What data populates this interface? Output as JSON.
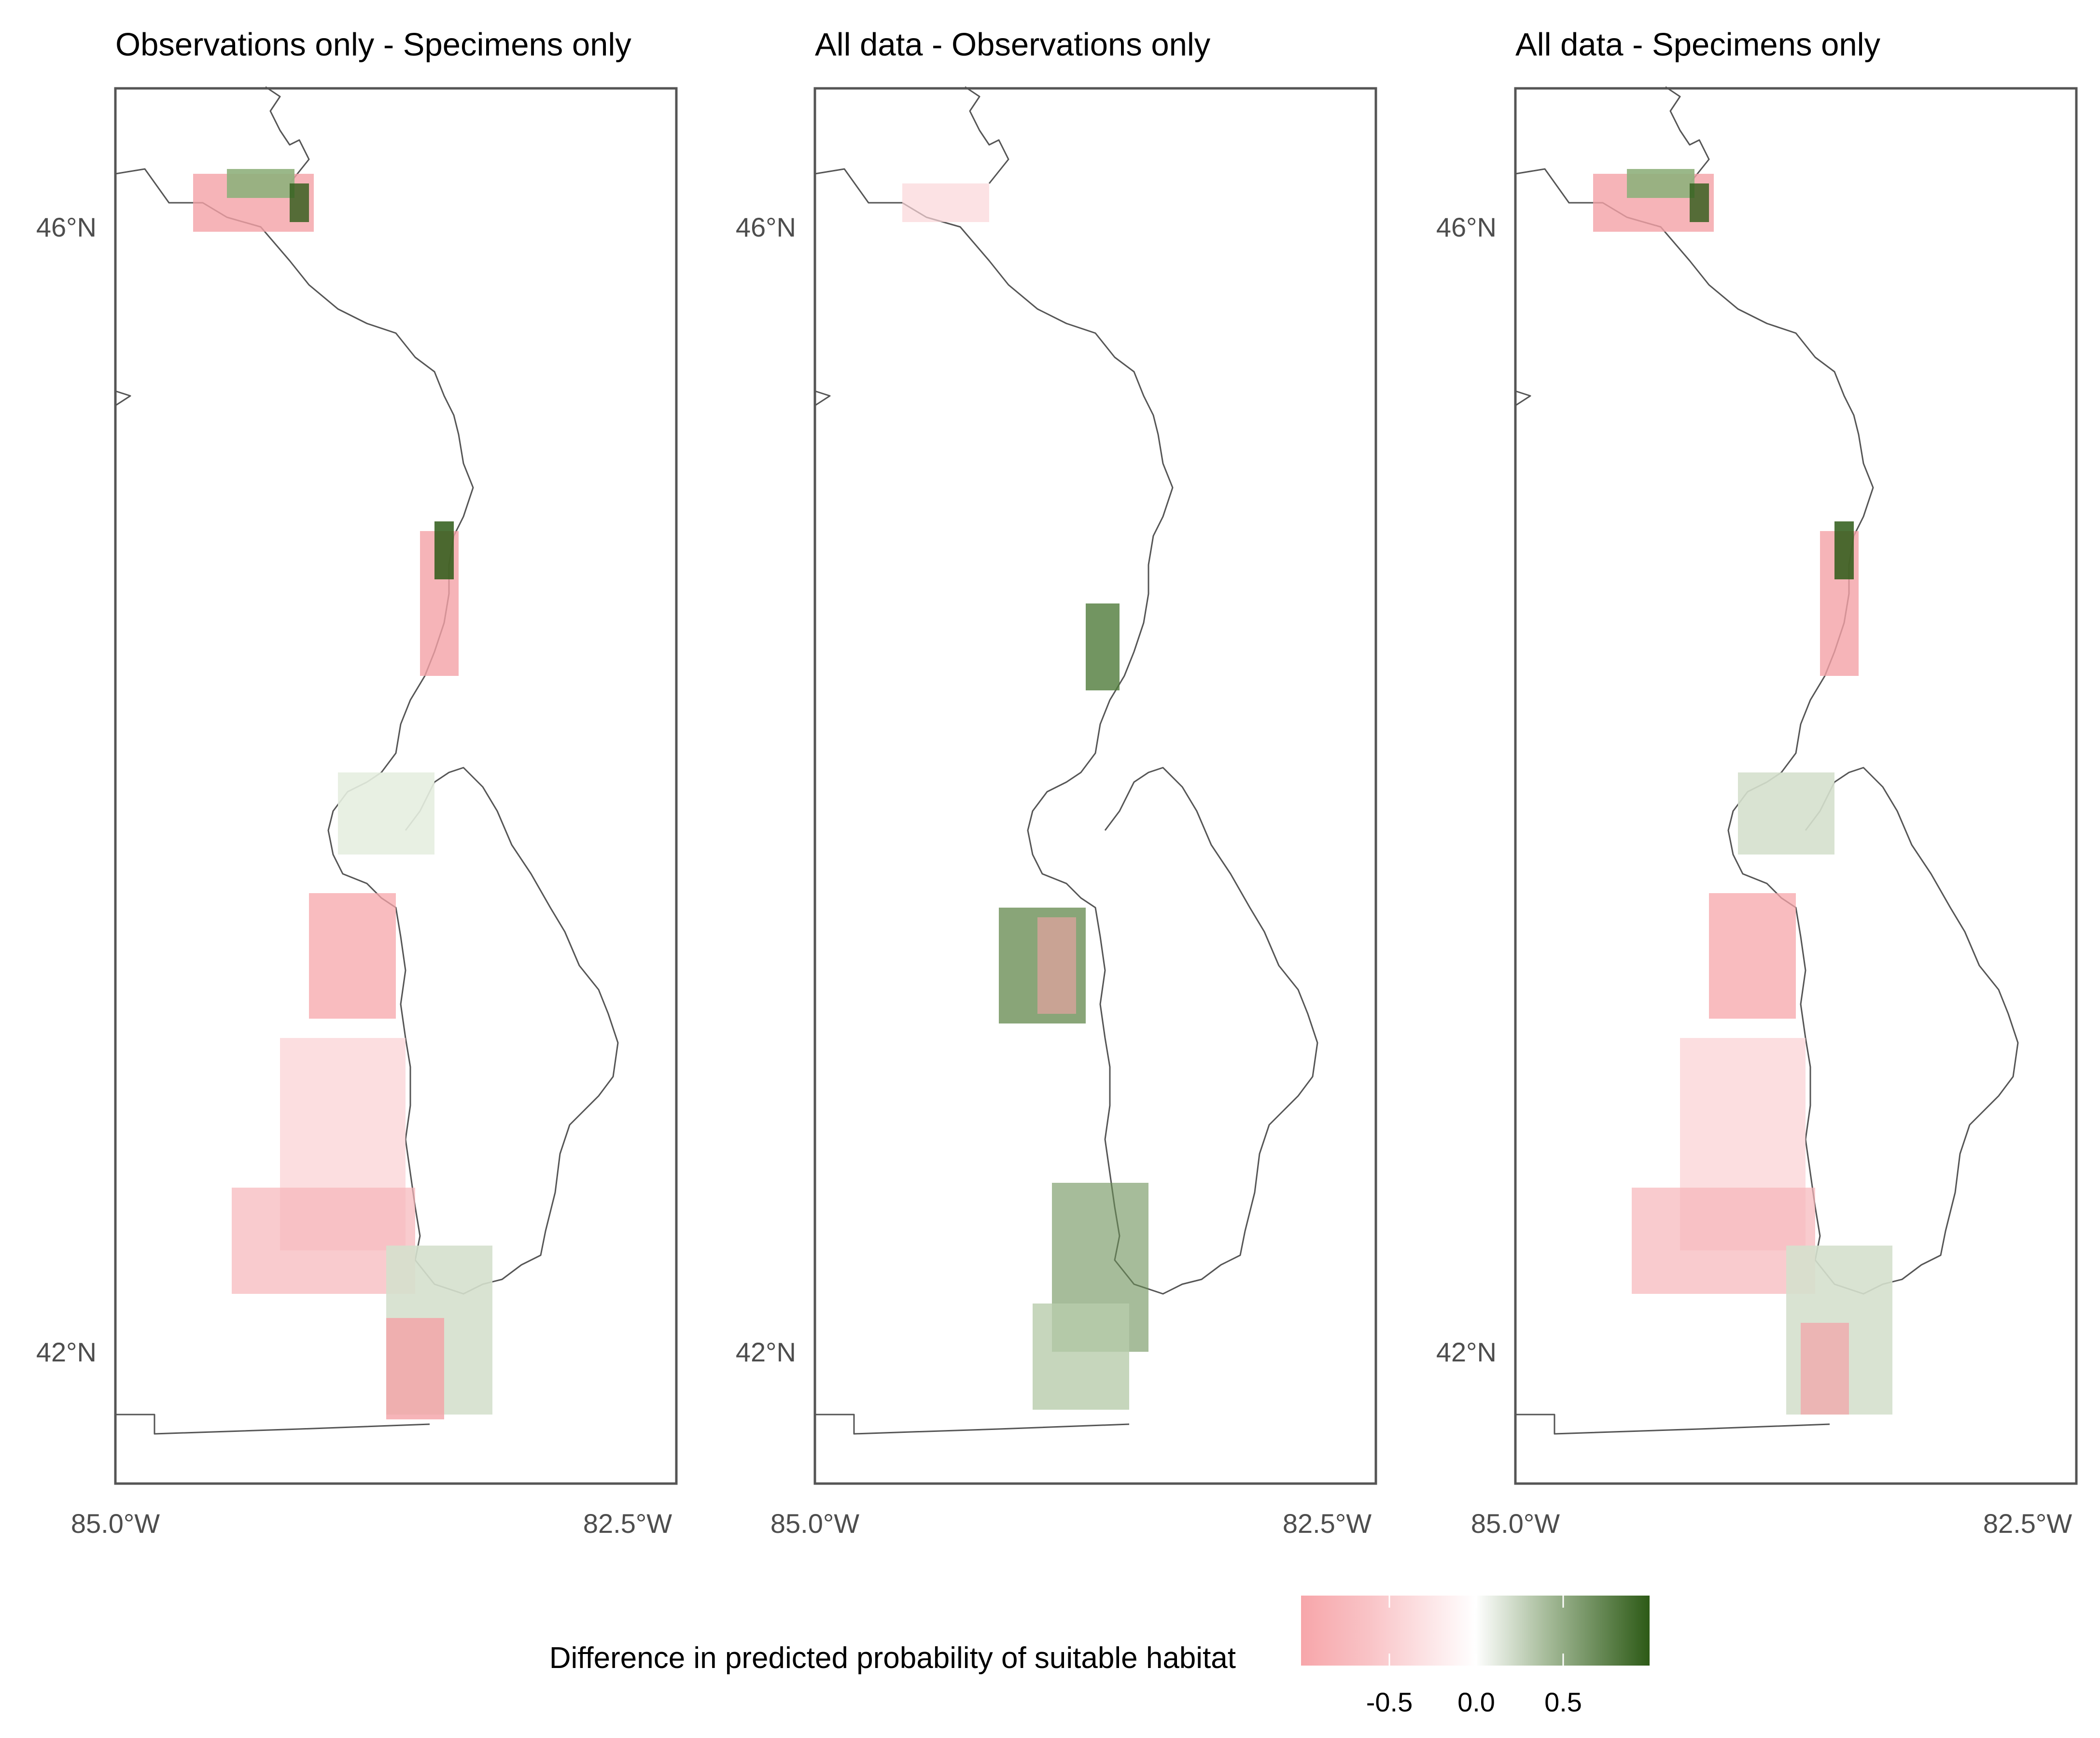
{
  "panels": [
    {
      "title": "Observations only - Specimens only",
      "lat_labels": [
        "46°N",
        "42°N"
      ],
      "lon_labels": [
        "85.0°W",
        "82.5°W"
      ]
    },
    {
      "title": "All data - Observations only",
      "lat_labels": [
        "46°N",
        "42°N"
      ],
      "lon_labels": [
        "85.0°W",
        "82.5°W"
      ]
    },
    {
      "title": "All data - Specimens only",
      "lat_labels": [
        "46°N",
        "42°N"
      ],
      "lon_labels": [
        "85.0°W",
        "82.5°W"
      ]
    }
  ],
  "legend": {
    "title": "Difference in predicted probability of suitable habitat",
    "ticks": [
      "-0.5",
      "0.0",
      "0.5"
    ],
    "colors": {
      "low": "#f7a6aa",
      "mid": "#ffffff",
      "high": "#2d5a16"
    }
  },
  "map_data": {
    "type": "raster difference map",
    "lat_ticks": [
      46,
      42
    ],
    "lon_ticks": [
      -85.0,
      -82.5
    ],
    "value_range": [
      -0.8,
      0.8
    ]
  }
}
